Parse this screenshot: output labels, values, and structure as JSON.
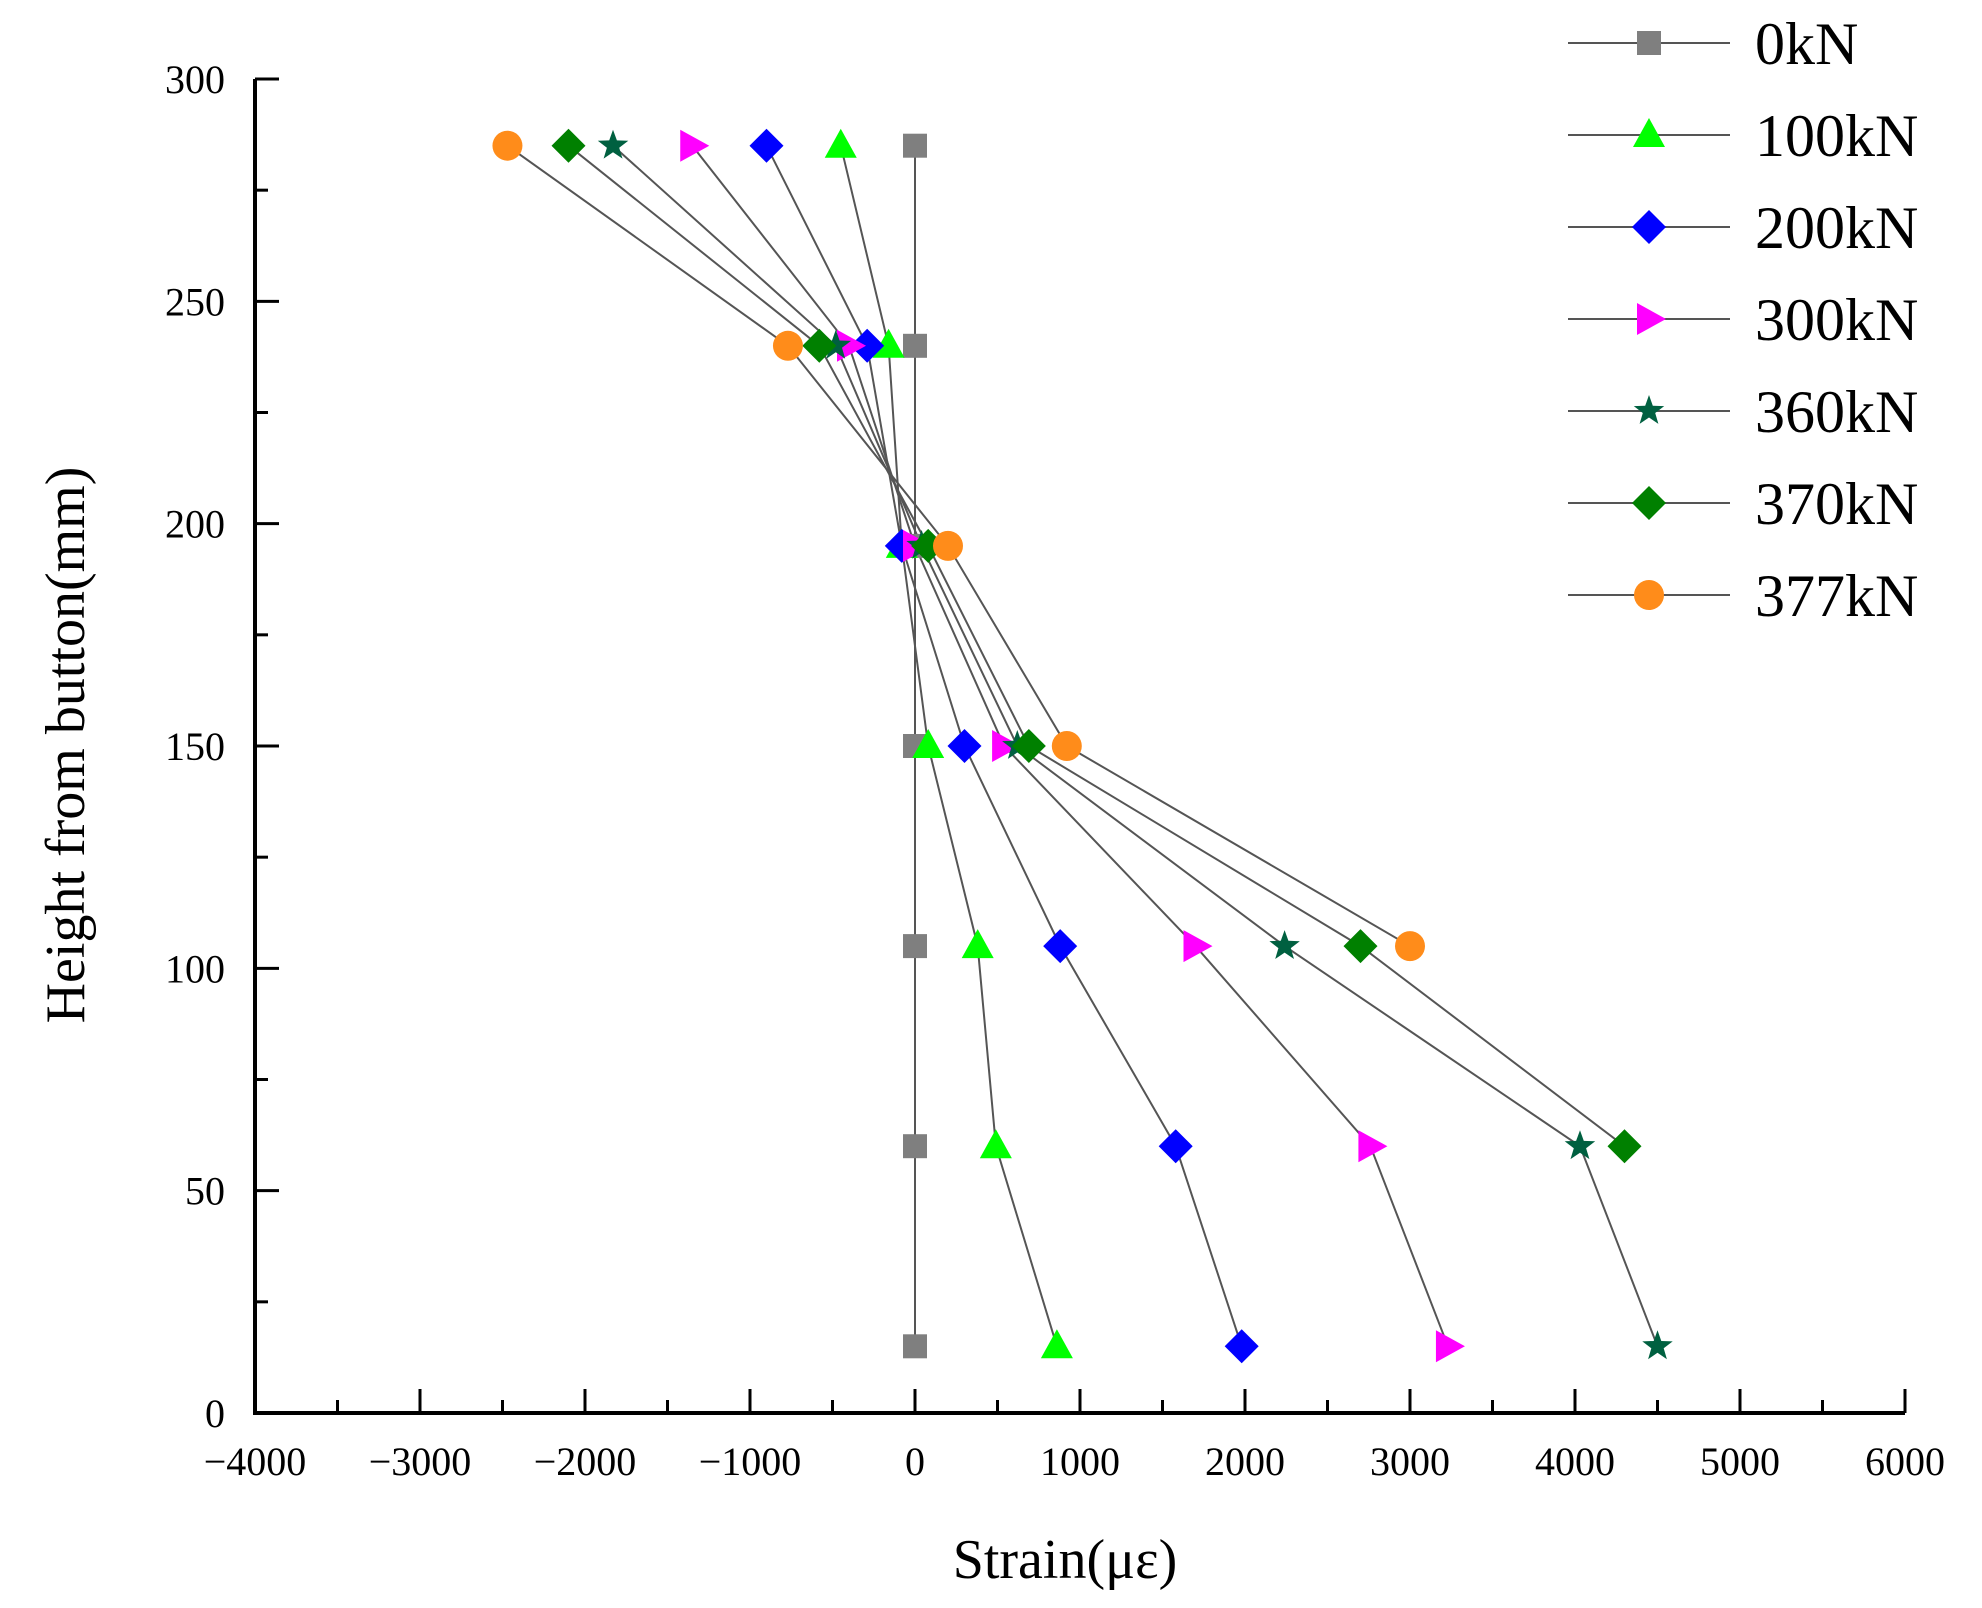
{
  "chart_data": {
    "type": "line",
    "title": "",
    "xlabel": "Strain(με)",
    "ylabel": "Height from button(mm)",
    "xlim": [
      -4000,
      6000
    ],
    "ylim": [
      0,
      300
    ],
    "x_ticks": [
      -4000,
      -3000,
      -2000,
      -1000,
      0,
      1000,
      2000,
      3000,
      4000,
      5000,
      6000
    ],
    "x_tick_labels": [
      "−4000",
      "−3000",
      "−2000",
      "−1000",
      "0",
      "1000",
      "2000",
      "3000",
      "4000",
      "5000",
      "6000"
    ],
    "y_ticks": [
      0,
      50,
      100,
      150,
      200,
      250,
      300
    ],
    "y_tick_labels": [
      "0",
      "50",
      "100",
      "150",
      "200",
      "250",
      "300"
    ],
    "grid": false,
    "legend_position": "top-right",
    "series": [
      {
        "name": "0kN",
        "marker": "square",
        "color": "#7f7f7f",
        "points": [
          [
            0,
            285
          ],
          [
            0,
            240
          ],
          [
            0,
            195
          ],
          [
            0,
            150
          ],
          [
            0,
            105
          ],
          [
            0,
            60
          ],
          [
            0,
            15
          ]
        ]
      },
      {
        "name": "100kN",
        "marker": "triangle-up",
        "color": "#00ff00",
        "points": [
          [
            -450,
            285
          ],
          [
            -160,
            240
          ],
          [
            -80,
            195
          ],
          [
            80,
            150
          ],
          [
            380,
            105
          ],
          [
            490,
            60
          ],
          [
            860,
            15
          ]
        ]
      },
      {
        "name": "200kN",
        "marker": "diamond",
        "color": "#0000ff",
        "points": [
          [
            -900,
            285
          ],
          [
            -290,
            240
          ],
          [
            -80,
            195
          ],
          [
            300,
            150
          ],
          [
            880,
            105
          ],
          [
            1580,
            60
          ],
          [
            1980,
            15
          ]
        ]
      },
      {
        "name": "300kN",
        "marker": "triangle-right",
        "color": "#ff00ff",
        "points": [
          [
            -1350,
            285
          ],
          [
            -400,
            240
          ],
          [
            0,
            195
          ],
          [
            540,
            150
          ],
          [
            1700,
            105
          ],
          [
            2760,
            60
          ],
          [
            3230,
            15
          ]
        ]
      },
      {
        "name": "360kN",
        "marker": "star",
        "color": "#006040",
        "points": [
          [
            -1830,
            285
          ],
          [
            -480,
            240
          ],
          [
            40,
            195
          ],
          [
            620,
            150
          ],
          [
            2240,
            105
          ],
          [
            4030,
            60
          ],
          [
            4500,
            15
          ]
        ]
      },
      {
        "name": "370kN",
        "marker": "diamond",
        "color": "#008000",
        "points": [
          [
            -2100,
            285
          ],
          [
            -580,
            240
          ],
          [
            80,
            195
          ],
          [
            690,
            150
          ],
          [
            2700,
            105
          ],
          [
            4300,
            60
          ]
        ]
      },
      {
        "name": "377kN",
        "marker": "circle",
        "color": "#ff8c1a",
        "points": [
          [
            -2470,
            285
          ],
          [
            -770,
            240
          ],
          [
            200,
            195
          ],
          [
            920,
            150
          ],
          [
            3000,
            105
          ]
        ]
      }
    ]
  }
}
